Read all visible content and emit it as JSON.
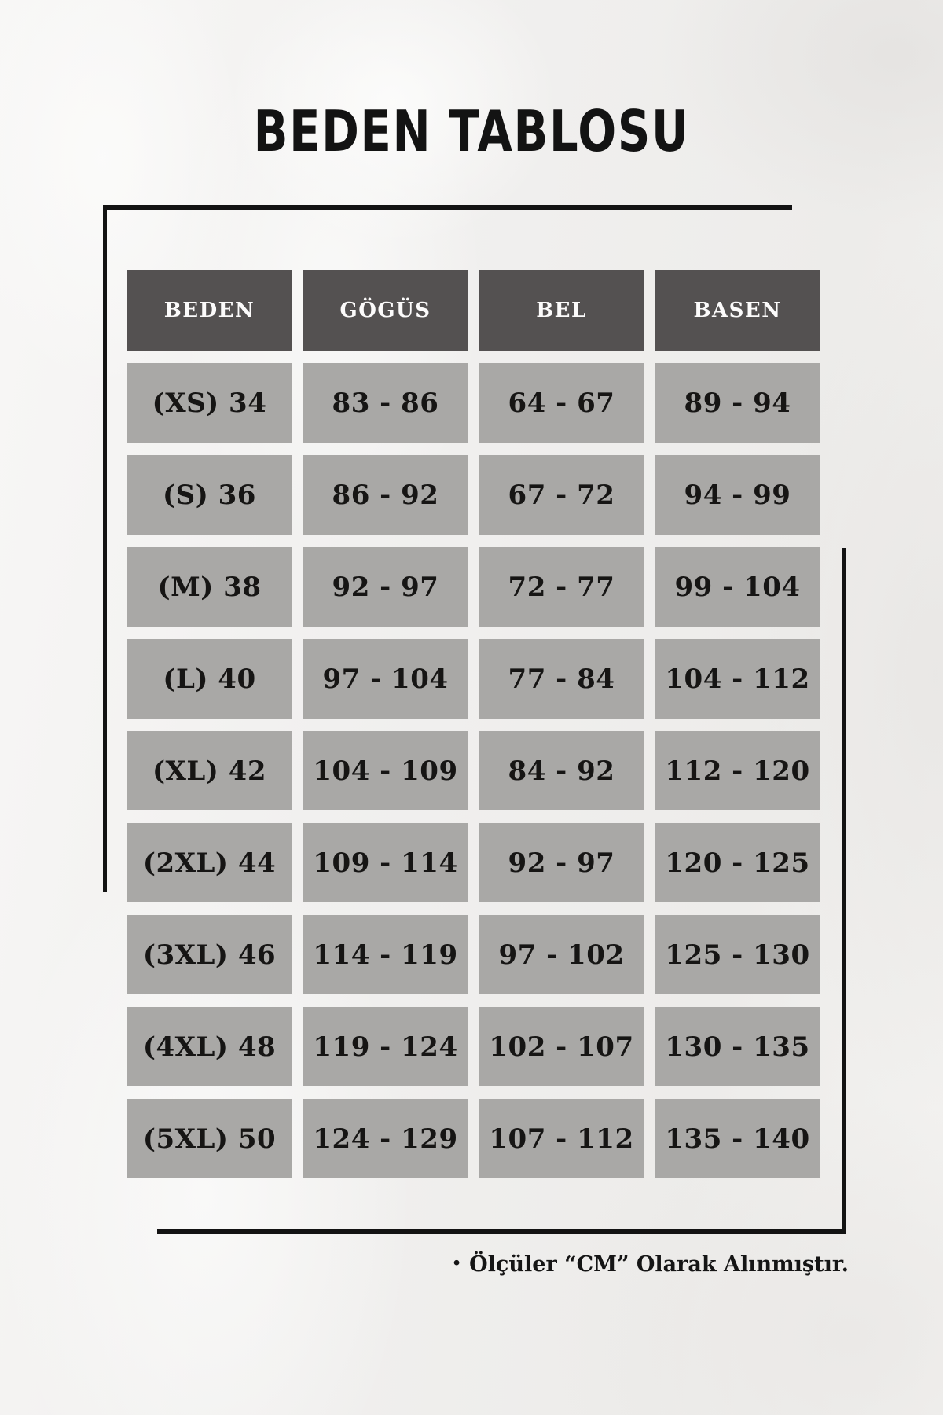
{
  "title": "BEDEN TABLOSU",
  "chart_data": {
    "type": "table",
    "title": "BEDEN TABLOSU",
    "columns": [
      "BEDEN",
      "GÖGÜS",
      "BEL",
      "BASEN"
    ],
    "rows": [
      [
        "(XS) 34",
        "83 - 86",
        "64 - 67",
        "89 - 94"
      ],
      [
        "(S) 36",
        "86 - 92",
        "67 - 72",
        "94 - 99"
      ],
      [
        "(M) 38",
        "92 - 97",
        "72 - 77",
        "99 - 104"
      ],
      [
        "(L) 40",
        "97 - 104",
        "77 - 84",
        "104 - 112"
      ],
      [
        "(XL) 42",
        "104 - 109",
        "84 - 92",
        "112 - 120"
      ],
      [
        "(2XL) 44",
        "109 - 114",
        "92 - 97",
        "120 - 125"
      ],
      [
        "(3XL) 46",
        "114 - 119",
        "97 - 102",
        "125 - 130"
      ],
      [
        "(4XL) 48",
        "119 - 124",
        "102 - 107",
        "130 - 135"
      ],
      [
        "(5XL) 50",
        "124 - 129",
        "107 - 112",
        "135 - 140"
      ]
    ],
    "note": "Ölçüler “CM” Olarak Alınmıştır.",
    "unit": "CM"
  },
  "footnote": {
    "bullet": "•",
    "text": "Ölçüler “CM” Olarak Alınmıştır."
  },
  "colors": {
    "header_bg": "#545151",
    "header_text": "#fcfbfb",
    "cell_bg": "#a9a8a6",
    "cell_text": "#161514",
    "frame_line": "#131313",
    "background": "#f0efee"
  }
}
